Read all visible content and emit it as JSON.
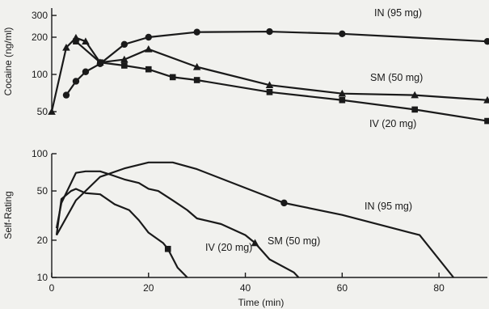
{
  "chart_data": [
    {
      "type": "line",
      "ylabel": "Cocaine (ng/ml)",
      "y_scale": "log",
      "ylim": [
        40,
        320
      ],
      "xlim": [
        0,
        90
      ],
      "y_ticks": [
        50,
        100,
        200,
        300
      ],
      "grid": false,
      "series": [
        {
          "name": "IN (95 mg)",
          "marker": "circle",
          "x": [
            3,
            5,
            7,
            10,
            15,
            20,
            30,
            45,
            60,
            90
          ],
          "y": [
            68,
            88,
            105,
            122,
            175,
            200,
            220,
            222,
            213,
            185
          ]
        },
        {
          "name": "SM (50 mg)",
          "marker": "triangle",
          "x": [
            0,
            3,
            5,
            7,
            10,
            15,
            20,
            30,
            45,
            60,
            75,
            90
          ],
          "y": [
            50,
            165,
            198,
            185,
            125,
            132,
            160,
            115,
            82,
            70,
            68,
            62
          ]
        },
        {
          "name": "IV (20 mg)",
          "marker": "square",
          "x": [
            5,
            10,
            15,
            20,
            25,
            30,
            45,
            60,
            75,
            90
          ],
          "y": [
            185,
            125,
            118,
            110,
            95,
            90,
            72,
            62,
            52,
            42
          ]
        }
      ]
    },
    {
      "type": "line",
      "xlabel": "Time (min)",
      "ylabel": "Self-Rating",
      "y_scale": "log",
      "ylim": [
        10,
        100
      ],
      "xlim": [
        0,
        90
      ],
      "x_ticks": [
        0,
        20,
        40,
        60,
        80
      ],
      "y_ticks": [
        10,
        20,
        50,
        100
      ],
      "grid": false,
      "series": [
        {
          "name": "IN (95 mg)",
          "marker": "circle",
          "marker_points": [
            [
              48,
              40
            ]
          ],
          "x": [
            1,
            5,
            10,
            15,
            20,
            25,
            30,
            48,
            60,
            76,
            83
          ],
          "y": [
            22,
            42,
            65,
            76,
            85,
            85,
            75,
            40,
            32,
            22,
            10
          ]
        },
        {
          "name": "SM (50 mg)",
          "marker": "triangle",
          "marker_points": [
            [
              42,
              19
            ]
          ],
          "x": [
            1,
            2,
            5,
            7,
            10,
            12,
            15,
            18,
            20,
            22,
            25,
            28,
            30,
            35,
            40,
            42,
            45,
            50,
            51
          ],
          "y": [
            25,
            40,
            70,
            72,
            72,
            68,
            62,
            58,
            52,
            50,
            42,
            35,
            30,
            27,
            22,
            19,
            14,
            11,
            10
          ]
        },
        {
          "name": "IV (20 mg)",
          "marker": "square",
          "marker_points": [
            [
              24,
              17
            ]
          ],
          "x": [
            1,
            2,
            4,
            5,
            7,
            10,
            13,
            16,
            18,
            20,
            23,
            24,
            26,
            28
          ],
          "y": [
            22,
            43,
            50,
            52,
            48,
            47,
            39,
            35,
            29,
            23,
            19,
            17,
            12,
            10
          ]
        }
      ]
    }
  ],
  "labels": {
    "top_in": "IN (95 mg)",
    "top_sm": "SM (50 mg)",
    "top_iv": "IV (20 mg)",
    "bot_in": "IN (95 mg)",
    "bot_sm": "SM (50 mg)",
    "bot_iv": "IV (20 mg)"
  }
}
